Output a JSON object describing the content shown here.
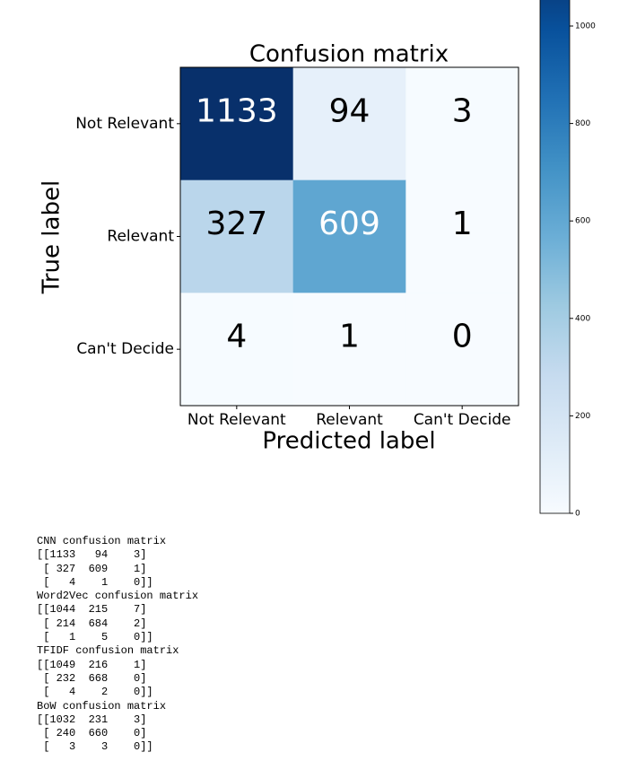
{
  "chart_data": {
    "type": "heatmap",
    "title": "Confusion matrix",
    "x_label": "Predicted label",
    "y_label": "True label",
    "x_categories": [
      "Not Relevant",
      "Relevant",
      "Can't Decide"
    ],
    "y_categories": [
      "Not Relevant",
      "Relevant",
      "Can't Decide"
    ],
    "values": [
      [
        1133,
        94,
        3
      ],
      [
        327,
        609,
        1
      ],
      [
        4,
        1,
        0
      ]
    ],
    "colormap": "Blues",
    "clim": [
      0,
      1133
    ],
    "cticks": [
      0,
      200,
      400,
      600,
      800,
      1000
    ]
  },
  "console_output": [
    "CNN confusion matrix",
    "[[1133   94    3]",
    " [ 327  609    1]",
    " [   4    1    0]]",
    "Word2Vec confusion matrix",
    "[[1044  215    7]",
    " [ 214  684    2]",
    " [   1    5    0]]",
    "TFIDF confusion matrix",
    "[[1049  216    1]",
    " [ 232  668    0]",
    " [   4    2    0]]",
    "BoW confusion matrix",
    "[[1032  231    3]",
    " [ 240  660    0]",
    " [   3    3    0]]"
  ]
}
